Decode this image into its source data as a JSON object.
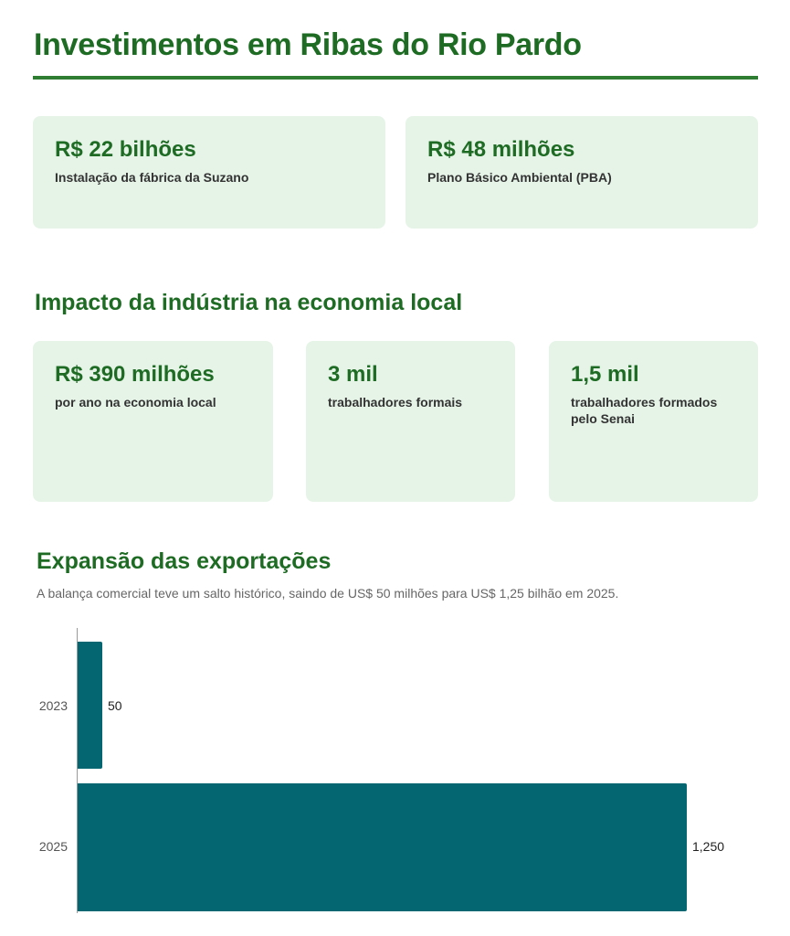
{
  "header": {
    "title": "Investimentos em Ribas do Rio Pardo"
  },
  "investments": [
    {
      "value": "R$ 22 bilhões",
      "label": "Instalação da fábrica da Suzano"
    },
    {
      "value": "R$ 48 milhões",
      "label": "Plano Básico Ambiental (PBA)"
    }
  ],
  "impact": {
    "title": "Impacto da indústria na economia local",
    "cards": [
      {
        "value": "R$ 390 milhões",
        "label": "por ano na economia local"
      },
      {
        "value": "3 mil",
        "label": "trabalhadores formais"
      },
      {
        "value": "1,5 mil",
        "label": "trabalhadores formados pelo Senai"
      }
    ]
  },
  "exports": {
    "title": "Expansão das exportações",
    "subtitle": "A balança comercial teve um salto histórico, saindo de US$ 50 milhões para US$ 1,25 bilhão em 2025."
  },
  "colors": {
    "accent_green": "#1e6b24",
    "rule_green": "#2e7d32",
    "card_bg": "#e6f4e8",
    "bar": "#046670"
  },
  "chart_data": {
    "type": "bar",
    "orientation": "horizontal",
    "title": "Expansão das exportações",
    "subtitle": "A balança comercial teve um salto histórico, saindo de US$ 50 milhões para US$ 1,25 bilhão em 2025.",
    "categories": [
      "2023",
      "2025"
    ],
    "values": [
      50,
      1250
    ],
    "value_labels": [
      "50",
      "1,250"
    ],
    "xlabel": "",
    "ylabel": "",
    "xlim": [
      0,
      1250
    ],
    "grid": false,
    "legend": null
  }
}
